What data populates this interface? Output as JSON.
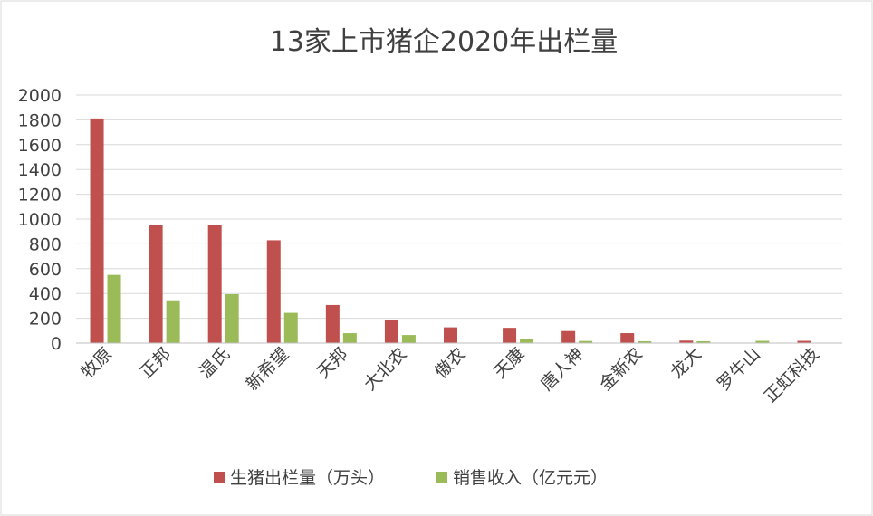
{
  "chart_data": {
    "type": "bar",
    "title": "13家上市猪企2020年出栏量",
    "categories": [
      "牧原",
      "正邦",
      "温氏",
      "新希望",
      "天邦",
      "大北农",
      "傲农",
      "天康",
      "唐人神",
      "金新农",
      "龙大",
      "罗牛山",
      "正虹科技"
    ],
    "series": [
      {
        "name": "生猪出栏量（万头）",
        "color": "#c0504d",
        "values": [
          1811,
          956,
          955,
          829,
          307,
          186,
          127,
          123,
          97,
          80,
          20,
          0,
          18
        ]
      },
      {
        "name": "销售收入（亿元元）",
        "color": "#9bbb59",
        "values": [
          550,
          345,
          394,
          244,
          80,
          65,
          0,
          30,
          17,
          15,
          15,
          18,
          0
        ]
      }
    ],
    "yticks": [
      0,
      200,
      400,
      600,
      800,
      1000,
      1200,
      1400,
      1600,
      1800,
      2000
    ],
    "ylim": [
      0,
      2000
    ],
    "grid": true,
    "legend_position": "bottom",
    "xlabel": "",
    "ylabel": ""
  }
}
